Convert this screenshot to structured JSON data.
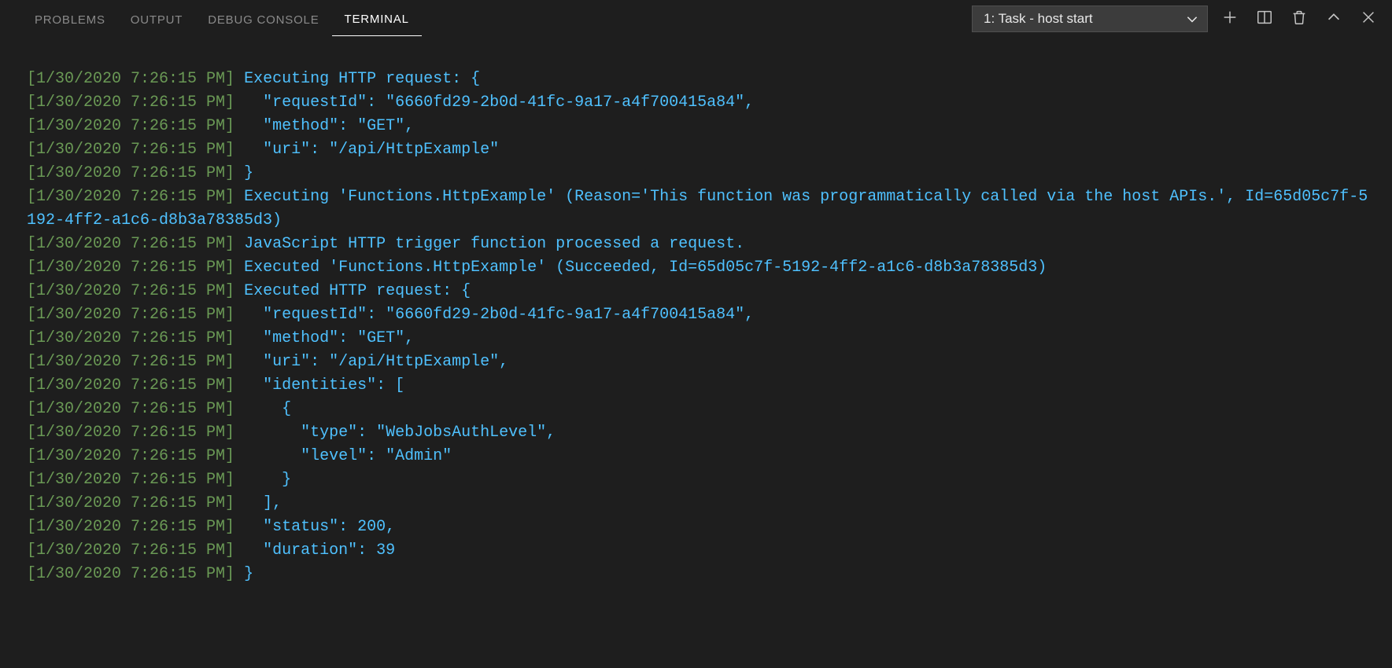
{
  "colors": {
    "background": "#1e1e1e",
    "tab_inactive": "#8a8a8a",
    "tab_active": "#ffffff",
    "timestamp": "#6a9955",
    "log_text": "#4fc1ff",
    "dropdown_bg": "#3c3c3c",
    "dropdown_border": "#4f4f4f",
    "icon": "#c5c5c5"
  },
  "tabs": {
    "problems": "PROBLEMS",
    "output": "OUTPUT",
    "debug_console": "DEBUG CONSOLE",
    "terminal": "TERMINAL",
    "active": "terminal"
  },
  "terminal_selector": {
    "selected": "1: Task - host start"
  },
  "actions": {
    "new": "New Terminal",
    "split": "Split Terminal",
    "kill": "Kill Terminal",
    "maximize": "Maximize Panel",
    "close": "Close Panel"
  },
  "log": {
    "timestamp": "[1/30/2020 7:26:15 PM]",
    "lines": [
      "Executing HTTP request: {",
      "  \"requestId\": \"6660fd29-2b0d-41fc-9a17-a4f700415a84\",",
      "  \"method\": \"GET\",",
      "  \"uri\": \"/api/HttpExample\"",
      "}",
      "Executing 'Functions.HttpExample' (Reason='This function was programmatically called via the host APIs.', Id=65d05c7f-5192-4ff2-a1c6-d8b3a78385d3)",
      "JavaScript HTTP trigger function processed a request.",
      "Executed 'Functions.HttpExample' (Succeeded, Id=65d05c7f-5192-4ff2-a1c6-d8b3a78385d3)",
      "Executed HTTP request: {",
      "  \"requestId\": \"6660fd29-2b0d-41fc-9a17-a4f700415a84\",",
      "  \"method\": \"GET\",",
      "  \"uri\": \"/api/HttpExample\",",
      "  \"identities\": [",
      "    {",
      "      \"type\": \"WebJobsAuthLevel\",",
      "      \"level\": \"Admin\"",
      "    }",
      "  ],",
      "  \"status\": 200,",
      "  \"duration\": 39",
      "}"
    ]
  }
}
